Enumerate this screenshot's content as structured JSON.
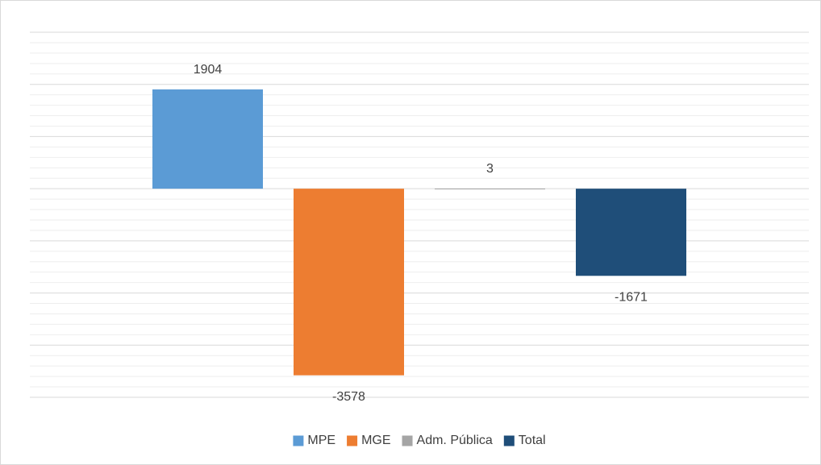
{
  "chart_data": {
    "type": "bar",
    "categories": [
      null
    ],
    "series": [
      {
        "name": "MPE",
        "color": "#5b9bd5",
        "values": [
          1904
        ]
      },
      {
        "name": "MGE",
        "color": "#ed7d31",
        "values": [
          -3578
        ]
      },
      {
        "name": "Adm. Pública",
        "color": "#a5a5a5",
        "values": [
          3
        ]
      },
      {
        "name": "Total",
        "color": "#1f4e79",
        "values": [
          -1671
        ]
      }
    ],
    "ylim": [
      -4000,
      3000
    ],
    "yticks": [
      -4000,
      -3000,
      -2000,
      -1000,
      0,
      1000,
      2000,
      3000
    ],
    "grid": true,
    "minor_grid": true,
    "legend": "bottom"
  }
}
